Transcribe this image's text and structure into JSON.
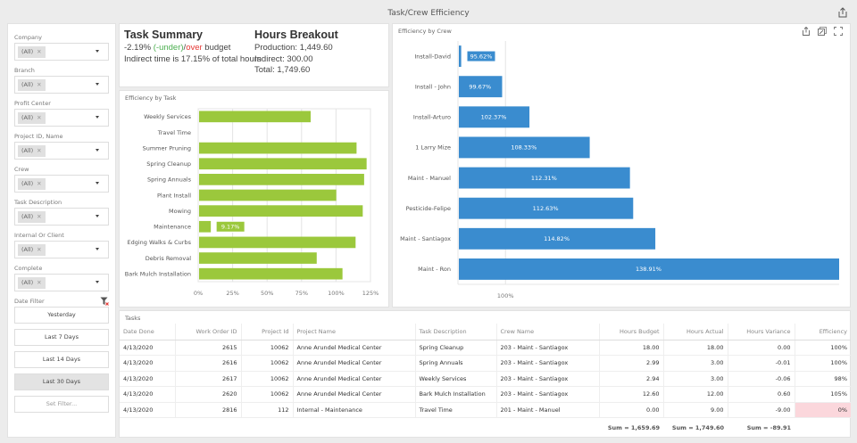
{
  "window": {
    "title": "Task/Crew Efficiency",
    "export_icon": "export-icon"
  },
  "filters": {
    "items": [
      {
        "label": "Company",
        "tag": "(All)"
      },
      {
        "label": "Branch",
        "tag": "(All)"
      },
      {
        "label": "Profit Center",
        "tag": "(All)"
      },
      {
        "label": "Project ID, Name",
        "tag": "(All)"
      },
      {
        "label": "Crew",
        "tag": "(All)"
      },
      {
        "label": "Task Description",
        "tag": "(All)"
      },
      {
        "label": "Internal Or Client",
        "tag": "(All)"
      },
      {
        "label": "Complete",
        "tag": "(All)"
      }
    ],
    "tag_remove_glyph": "✕",
    "date_filter": {
      "label": "Date Filter",
      "buttons": [
        "Yesterday",
        "Last 7 Days",
        "Last 14 Days",
        "Last 30 Days",
        "Set Filter..."
      ],
      "active": "Last 30 Days"
    }
  },
  "summary": {
    "task_title": "Task Summary",
    "budget_pct": "-2.19%",
    "under_label": "(-under)",
    "slash": "/",
    "over_label": "over",
    "budget_suffix": " budget",
    "indirect_line": "Indirect time is 17.15% of total hours",
    "hours_title": "Hours Breakout",
    "production": "Production: 1,449.60",
    "indirect": "Indirect: 300.00",
    "total": "Total: 1,749.60",
    "colors": {
      "under": "#4caf50",
      "over": "#e53935"
    }
  },
  "chart_data": [
    {
      "type": "bar",
      "orientation": "horizontal",
      "title": "Efficiency by Task",
      "categories": [
        "Weekly Services",
        "Travel Time",
        "Summer Pruning",
        "Spring Cleanup",
        "Spring Annuals",
        "Plant Install",
        "Mowing",
        "Maintenance",
        "Edging Walks & Curbs",
        "Debris Removal",
        "Bark Mulch Installation"
      ],
      "values": [
        81.6,
        0,
        114.9,
        122.2,
        120.4,
        100.2,
        119.4,
        9.17,
        114.2,
        86.0,
        104.7
      ],
      "data_labels": {
        "Maintenance": "9.17%"
      },
      "xlim": [
        0,
        125
      ],
      "xticks": [
        "0%",
        "25%",
        "50%",
        "75%",
        "100%",
        "125%"
      ],
      "xtick_values": [
        0,
        25,
        50,
        75,
        100,
        125
      ],
      "grid": true,
      "color": "#9bc83c"
    },
    {
      "type": "bar",
      "orientation": "horizontal",
      "title": "Efficiency by Crew",
      "categories": [
        "Install-David",
        "Install - John",
        "Install-Arturo",
        "1 Larry Mize",
        "Maint - Manuel",
        "Pesticide-Felipe",
        "Maint - Santiagox",
        "Maint - Ron"
      ],
      "values": [
        95.62,
        99.67,
        102.37,
        108.33,
        112.31,
        112.63,
        114.82,
        138.91
      ],
      "labels": [
        "95.62%",
        "99.67%",
        "102.37%",
        "108.33%",
        "112.31%",
        "112.63%",
        "114.82%",
        "138.91%"
      ],
      "xlim": [
        95.3,
        133
      ],
      "xticks": [
        "100%"
      ],
      "xtick_values": [
        100
      ],
      "grid": true,
      "color": "#3a8ccf"
    }
  ],
  "crew_tools": [
    "export-icon",
    "inspect-data-icon",
    "fullscreen-icon"
  ],
  "tasks": {
    "title": "Tasks",
    "columns": [
      "Date Done",
      "Work Order ID",
      "Project Id",
      "Project Name",
      "Task Description",
      "Crew Name",
      "Hours Budget",
      "Hours Actual",
      "Hours Variance",
      "Efficiency"
    ],
    "rows": [
      [
        "4/13/2020",
        "2615",
        "10062",
        "Anne Arundel Medical Center",
        "Spring Cleanup",
        "203 - Maint - Santiagox",
        "18.00",
        "18.00",
        "0.00",
        "100%"
      ],
      [
        "4/13/2020",
        "2616",
        "10062",
        "Anne Arundel Medical Center",
        "Spring Annuals",
        "203 - Maint - Santiagox",
        "2.99",
        "3.00",
        "-0.01",
        "100%"
      ],
      [
        "4/13/2020",
        "2617",
        "10062",
        "Anne Arundel Medical Center",
        "Weekly Services",
        "203 - Maint - Santiagox",
        "2.94",
        "3.00",
        "-0.06",
        "98%"
      ],
      [
        "4/13/2020",
        "2620",
        "10062",
        "Anne Arundel Medical Center",
        "Bark Mulch Installation",
        "203 - Maint - Santiagox",
        "12.60",
        "12.00",
        "0.60",
        "105%"
      ],
      [
        "4/13/2020",
        "2816",
        "112",
        "Internal - Maintenance",
        "Travel Time",
        "201 - Maint - Manuel",
        "0.00",
        "9.00",
        "-9.00",
        "0%"
      ]
    ],
    "highlight": {
      "row": 4,
      "col": 9,
      "color": "#fbd7dc"
    },
    "totals": {
      "hours_budget": "Sum = 1,659.69",
      "hours_actual": "Sum = 1,749.60",
      "hours_variance": "Sum = -89.91"
    }
  }
}
